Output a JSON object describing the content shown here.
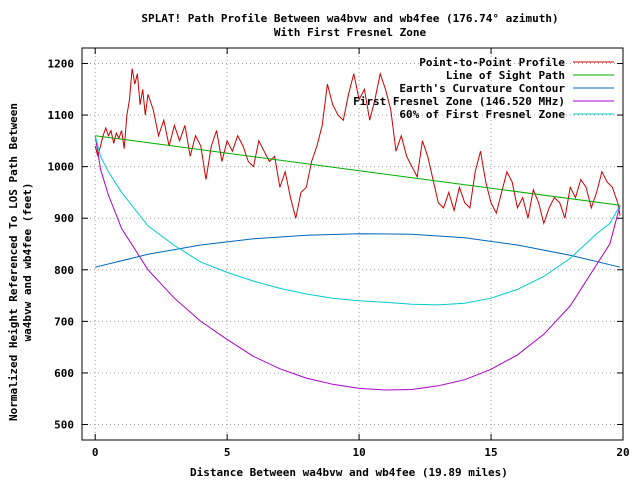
{
  "chart_data": {
    "type": "line",
    "title": "SPLAT! Path Profile Between wa4bvw and wb4fee (176.74° azimuth)",
    "subtitle": "With First Fresnel Zone",
    "xlabel": "Distance Between wa4bvw and wb4fee (19.89 miles)",
    "ylabel_lines": [
      "Normalized Height Referenced To LOS Path Between",
      "wa4bvw and wb4fee (feet)"
    ],
    "xlim": [
      -0.5,
      20
    ],
    "ylim": [
      470,
      1230
    ],
    "xticks": [
      0,
      5,
      10,
      15,
      20
    ],
    "yticks": [
      500,
      600,
      700,
      800,
      900,
      1000,
      1100,
      1200
    ],
    "grid": true,
    "legend_position": "top-right",
    "series": [
      {
        "name": "Point-to-Point Profile",
        "color": "#cc0000",
        "x": [
          0.0,
          0.1,
          0.2,
          0.3,
          0.4,
          0.5,
          0.6,
          0.7,
          0.8,
          0.9,
          1.0,
          1.1,
          1.2,
          1.3,
          1.4,
          1.5,
          1.6,
          1.7,
          1.8,
          1.9,
          2.0,
          2.2,
          2.4,
          2.6,
          2.8,
          3.0,
          3.2,
          3.4,
          3.6,
          3.8,
          4.0,
          4.2,
          4.4,
          4.6,
          4.8,
          5.0,
          5.2,
          5.4,
          5.6,
          5.8,
          6.0,
          6.2,
          6.4,
          6.6,
          6.8,
          7.0,
          7.2,
          7.4,
          7.6,
          7.8,
          8.0,
          8.2,
          8.4,
          8.6,
          8.8,
          9.0,
          9.2,
          9.4,
          9.6,
          9.8,
          10.0,
          10.2,
          10.4,
          10.6,
          10.8,
          11.0,
          11.2,
          11.4,
          11.6,
          11.8,
          12.0,
          12.2,
          12.4,
          12.6,
          12.8,
          13.0,
          13.2,
          13.4,
          13.6,
          13.8,
          14.0,
          14.2,
          14.4,
          14.6,
          14.8,
          15.0,
          15.2,
          15.4,
          15.6,
          15.8,
          16.0,
          16.2,
          16.4,
          16.6,
          16.8,
          17.0,
          17.2,
          17.4,
          17.6,
          17.8,
          18.0,
          18.2,
          18.4,
          18.6,
          18.8,
          19.0,
          19.2,
          19.4,
          19.6,
          19.8,
          19.89
        ],
        "y": [
          1040,
          1020,
          1040,
          1060,
          1075,
          1060,
          1070,
          1045,
          1065,
          1055,
          1070,
          1035,
          1100,
          1130,
          1190,
          1160,
          1180,
          1120,
          1150,
          1100,
          1140,
          1110,
          1060,
          1090,
          1040,
          1080,
          1050,
          1080,
          1020,
          1060,
          1040,
          975,
          1040,
          1070,
          1010,
          1050,
          1030,
          1060,
          1040,
          1010,
          1000,
          1050,
          1030,
          1010,
          1020,
          960,
          990,
          940,
          900,
          950,
          960,
          1010,
          1040,
          1080,
          1160,
          1120,
          1100,
          1090,
          1140,
          1180,
          1130,
          1150,
          1090,
          1130,
          1180,
          1150,
          1110,
          1030,
          1060,
          1020,
          1000,
          980,
          1050,
          1020,
          975,
          930,
          920,
          950,
          915,
          960,
          930,
          920,
          990,
          1030,
          970,
          930,
          910,
          950,
          990,
          970,
          920,
          940,
          900,
          955,
          930,
          890,
          920,
          940,
          930,
          900,
          960,
          940,
          975,
          960,
          920,
          950,
          990,
          970,
          960,
          930,
          905
        ]
      },
      {
        "name": "Line of Sight Path",
        "color": "#00aa00",
        "x": [
          0,
          19.89
        ],
        "y": [
          1060,
          925
        ]
      },
      {
        "name": "Earth's Curvature Contour",
        "color": "#0066bb",
        "x": [
          0,
          2,
          4,
          6,
          8,
          10,
          12,
          14,
          16,
          18,
          19.89
        ],
        "y": [
          805,
          830,
          848,
          860,
          867,
          870,
          869,
          862,
          848,
          828,
          805
        ]
      },
      {
        "name": "First Fresnel Zone (146.520 MHz)",
        "color": "#aa00cc",
        "x": [
          0,
          0.2,
          0.5,
          1,
          2,
          3,
          4,
          5,
          6,
          7,
          8,
          9,
          10,
          11,
          12,
          13,
          14,
          15,
          16,
          17,
          18,
          19,
          19.5,
          19.89
        ],
        "y": [
          1060,
          995,
          945,
          880,
          800,
          745,
          700,
          665,
          632,
          608,
          590,
          578,
          570,
          567,
          568,
          575,
          587,
          607,
          635,
          675,
          730,
          810,
          850,
          925
        ]
      },
      {
        "name": "60% of First Fresnel Zone",
        "color": "#00cccc",
        "x": [
          0,
          0.2,
          0.5,
          1,
          2,
          3,
          4,
          5,
          6,
          7,
          8,
          9,
          10,
          11,
          12,
          13,
          14,
          15,
          16,
          17,
          18,
          19,
          19.5,
          19.89
        ],
        "y": [
          1060,
          1020,
          990,
          950,
          885,
          847,
          815,
          795,
          778,
          764,
          753,
          745,
          740,
          737,
          733,
          732,
          735,
          745,
          762,
          787,
          822,
          870,
          890,
          925
        ]
      }
    ],
    "legend_labels": [
      "Point-to-Point Profile",
      "Line of Sight Path",
      "Earth's Curvature Contour",
      "First Fresnel Zone (146.520 MHz)",
      "60% of First Fresnel Zone"
    ]
  }
}
